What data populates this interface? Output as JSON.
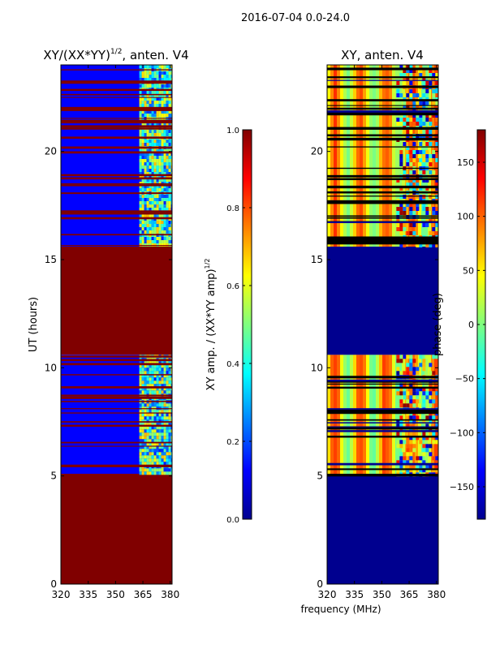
{
  "suptitle": "2016-07-04 0.0-24.0",
  "colors": {
    "red": "#800000",
    "blue": "#00008f",
    "mid_blue": "#0000ff",
    "white_line": "#ffffff",
    "black_line": "#000000"
  },
  "colormap": [
    "#00008f",
    "#0000ff",
    "#007fff",
    "#00ffff",
    "#7fff7f",
    "#ffff00",
    "#ff7f00",
    "#ff0000",
    "#800000"
  ],
  "chart_data": [
    {
      "type": "heatmap",
      "title_main": "XY/(XX*YY)",
      "title_sup": "1/2",
      "title_rest": ", anten. V4",
      "xlabel": "",
      "ylabel": "UT (hours)",
      "xlim": [
        320,
        381
      ],
      "ylim": [
        0,
        24
      ],
      "x_ticks": [
        "320",
        "335",
        "350",
        "365",
        "380"
      ],
      "x_tick_values": [
        320,
        335,
        350,
        365,
        380
      ],
      "y_ticks": [
        "0",
        "5",
        "10",
        "15",
        "20"
      ],
      "y_tick_values": [
        0,
        5,
        10,
        15,
        20
      ],
      "bands": [
        {
          "from": 0.0,
          "to": 5.1,
          "kind": "saturated"
        },
        {
          "from": 5.1,
          "to": 10.6,
          "kind": "measured"
        },
        {
          "from": 10.6,
          "to": 15.6,
          "kind": "saturated"
        },
        {
          "from": 15.6,
          "to": 24.0,
          "kind": "measured"
        }
      ],
      "colorbar": {
        "label_main": "XY amp. / (XX*YY amp)",
        "label_sup": "1/2",
        "range": [
          0.0,
          1.0
        ],
        "ticks": [
          "0.0",
          "0.2",
          "0.4",
          "0.6",
          "0.8",
          "1.0"
        ],
        "tick_values": [
          0.0,
          0.2,
          0.4,
          0.6,
          0.8,
          1.0
        ]
      }
    },
    {
      "type": "heatmap",
      "title_main": "XY, anten. V4",
      "title_sup": "",
      "title_rest": "",
      "xlabel": "frequency (MHz)",
      "ylabel": "",
      "xlim": [
        320,
        381
      ],
      "ylim": [
        0,
        24
      ],
      "x_ticks": [
        "320",
        "335",
        "350",
        "365",
        "380"
      ],
      "x_tick_values": [
        320,
        335,
        350,
        365,
        380
      ],
      "y_ticks": [
        "0",
        "5",
        "10",
        "15",
        "20"
      ],
      "y_tick_values": [
        0,
        5,
        10,
        15,
        20
      ],
      "bands": [
        {
          "from": 0.0,
          "to": 5.1,
          "kind": "empty"
        },
        {
          "from": 5.1,
          "to": 10.6,
          "kind": "measured"
        },
        {
          "from": 10.6,
          "to": 15.6,
          "kind": "empty"
        },
        {
          "from": 15.6,
          "to": 24.0,
          "kind": "measured"
        }
      ],
      "colorbar": {
        "label_main": "phase (deg)",
        "label_sup": "",
        "range": [
          -180,
          180
        ],
        "ticks": [
          "−150",
          "−100",
          "−50",
          "0",
          "50",
          "100",
          "150"
        ],
        "tick_values": [
          -150,
          -100,
          -50,
          0,
          50,
          100,
          150
        ]
      }
    }
  ]
}
